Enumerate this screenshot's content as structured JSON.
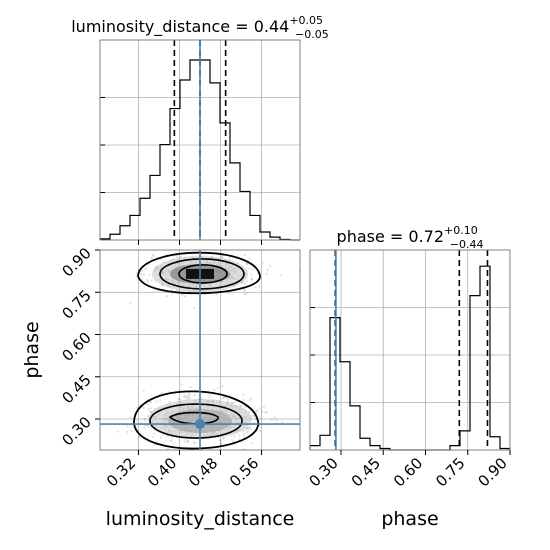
{
  "chart_data": {
    "type": "corner",
    "params": [
      "luminosity_distance",
      "phase"
    ],
    "colors": {
      "truth": "#4682b4",
      "hist": "#000000",
      "grid": "#b0b0b0",
      "frame": "#808080"
    },
    "titles": [
      {
        "param": "luminosity_distance",
        "text": "luminosity_distance = ",
        "median": "0.44",
        "plus": "+0.05",
        "minus": "−0.05"
      },
      {
        "param": "phase",
        "text": "phase = ",
        "median": "0.72",
        "plus": "+0.10",
        "minus": "−0.44"
      }
    ],
    "axes": {
      "luminosity_distance": {
        "range": [
          0.245,
          0.635
        ],
        "ticks": [
          0.32,
          0.4,
          0.48,
          0.56
        ],
        "tick_labels": [
          "0.32",
          "0.40",
          "0.48",
          "0.56"
        ],
        "label": "luminosity_distance"
      },
      "phase": {
        "range": [
          0.19,
          0.9
        ],
        "ticks": [
          0.3,
          0.45,
          0.6,
          0.75,
          0.9
        ],
        "tick_labels": [
          "0.30",
          "0.45",
          "0.60",
          "0.75",
          "0.90"
        ],
        "label": "phase"
      }
    },
    "truths": {
      "luminosity_distance": 0.44,
      "phase": 0.282
    },
    "hist_luminosity_distance": {
      "bin_edges": [
        0.245,
        0.2645,
        0.284,
        0.3035,
        0.323,
        0.3425,
        0.362,
        0.3815,
        0.401,
        0.4205,
        0.44,
        0.4595,
        0.479,
        0.4985,
        0.518,
        0.5375,
        0.557,
        0.5765,
        0.596,
        0.6155,
        0.635
      ],
      "counts": [
        0.2,
        1.0,
        2.5,
        4.3,
        7.3,
        11.3,
        16.7,
        23.0,
        28.0,
        31.5,
        31.5,
        27.5,
        20.5,
        13.5,
        8.5,
        4.3,
        1.4,
        0.5,
        0.1,
        0.0
      ],
      "quantiles": [
        0.39,
        0.44,
        0.49
      ]
    },
    "hist_phase": {
      "bin_edges": [
        0.19,
        0.2255,
        0.261,
        0.2965,
        0.332,
        0.3675,
        0.403,
        0.4385,
        0.474,
        0.5095,
        0.545,
        0.5805,
        0.616,
        0.6515,
        0.687,
        0.7225,
        0.758,
        0.7935,
        0.829,
        0.8645,
        0.9
      ],
      "counts": [
        0.3,
        1.0,
        9.0,
        6.0,
        3.0,
        0.8,
        0.3,
        0.1,
        0,
        0,
        0,
        0,
        0,
        0,
        0.3,
        1.3,
        10.5,
        12.5,
        0.9,
        0.1
      ],
      "quantiles": [
        0.28,
        0.72,
        0.82
      ]
    },
    "density_modes": [
      {
        "luminosity_distance": 0.44,
        "phase": 0.815,
        "spread": [
          0.05,
          0.03
        ]
      },
      {
        "luminosity_distance": 0.44,
        "phase": 0.3,
        "spread": [
          0.055,
          0.04
        ]
      }
    ]
  }
}
